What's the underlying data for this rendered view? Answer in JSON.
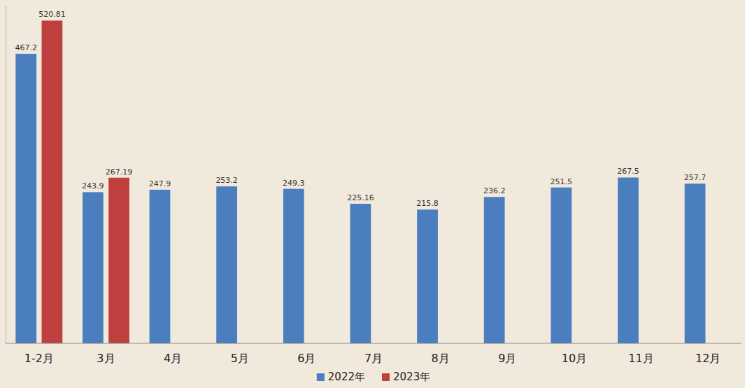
{
  "chart_data": {
    "type": "bar",
    "categories": [
      "1-2月",
      "3月",
      "4月",
      "5月",
      "6月",
      "7月",
      "8月",
      "9月",
      "10月",
      "11月",
      "12月"
    ],
    "series": [
      {
        "name": "2022年",
        "color": "#4a7ebf",
        "values": [
          467.2,
          243.9,
          247.9,
          253.2,
          249.3,
          225.16,
          215.8,
          236.2,
          251.5,
          267.5,
          257.7
        ]
      },
      {
        "name": "2023年",
        "color": "#c0403f",
        "values": [
          520.81,
          267.19,
          null,
          null,
          null,
          null,
          null,
          null,
          null,
          null,
          null
        ]
      }
    ],
    "ylim": [
      0,
      545
    ],
    "yticks": [],
    "tick_labels": "x",
    "data_labels": true,
    "legend": "bottom",
    "grid": false
  }
}
